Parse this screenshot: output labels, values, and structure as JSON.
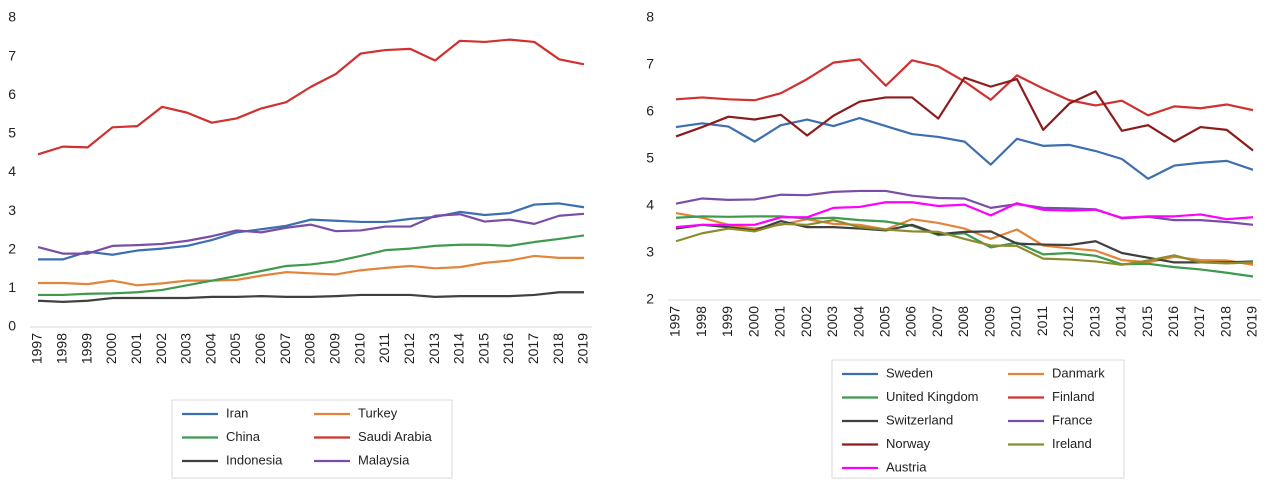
{
  "chart_data": [
    {
      "type": "line",
      "categories": [
        "1997",
        "1998",
        "1999",
        "2000",
        "2001",
        "2002",
        "2003",
        "2004",
        "2005",
        "2006",
        "2007",
        "2008",
        "2009",
        "2010",
        "2011",
        "2012",
        "2013",
        "2014",
        "2015",
        "2016",
        "2017",
        "2018",
        "2019"
      ],
      "ylim": [
        0,
        8
      ],
      "yticks": [
        0,
        1,
        2,
        3,
        4,
        5,
        6,
        7,
        8
      ],
      "grid": false,
      "series": [
        {
          "name": "Iran",
          "color": "#3d6fb0",
          "values": [
            1.75,
            1.75,
            1.95,
            1.87,
            1.98,
            2.03,
            2.1,
            2.25,
            2.45,
            2.53,
            2.62,
            2.78,
            2.75,
            2.72,
            2.72,
            2.8,
            2.85,
            2.98,
            2.9,
            2.95,
            3.17,
            3.2,
            3.1
          ]
        },
        {
          "name": "Turkey",
          "color": "#e3843a",
          "values": [
            1.14,
            1.14,
            1.11,
            1.2,
            1.08,
            1.13,
            1.2,
            1.2,
            1.22,
            1.33,
            1.42,
            1.39,
            1.36,
            1.47,
            1.53,
            1.58,
            1.52,
            1.55,
            1.66,
            1.72,
            1.84,
            1.79,
            1.79
          ]
        },
        {
          "name": "China",
          "color": "#3f9a4d",
          "values": [
            0.83,
            0.83,
            0.86,
            0.87,
            0.9,
            0.96,
            1.08,
            1.2,
            1.32,
            1.45,
            1.58,
            1.62,
            1.7,
            1.84,
            1.99,
            2.03,
            2.1,
            2.13,
            2.13,
            2.1,
            2.2,
            2.28,
            2.37
          ]
        },
        {
          "name": "Saudi Arabia",
          "color": "#d0302f",
          "values": [
            4.47,
            4.67,
            4.65,
            5.17,
            5.2,
            5.7,
            5.55,
            5.29,
            5.4,
            5.66,
            5.82,
            6.22,
            6.55,
            7.08,
            7.17,
            7.2,
            6.9,
            7.41,
            7.38,
            7.44,
            7.38,
            6.93,
            6.8
          ]
        },
        {
          "name": "Indonesia",
          "color": "#404040",
          "values": [
            0.68,
            0.65,
            0.68,
            0.75,
            0.75,
            0.75,
            0.75,
            0.78,
            0.78,
            0.8,
            0.78,
            0.78,
            0.8,
            0.83,
            0.83,
            0.83,
            0.78,
            0.8,
            0.8,
            0.8,
            0.83,
            0.9,
            0.9
          ]
        },
        {
          "name": "Malaysia",
          "color": "#7a4ea6",
          "values": [
            2.07,
            1.9,
            1.9,
            2.1,
            2.12,
            2.15,
            2.23,
            2.35,
            2.5,
            2.45,
            2.57,
            2.65,
            2.48,
            2.5,
            2.6,
            2.6,
            2.88,
            2.92,
            2.73,
            2.78,
            2.67,
            2.88,
            2.93
          ]
        }
      ]
    },
    {
      "type": "line",
      "categories": [
        "1997",
        "1998",
        "1999",
        "2000",
        "2001",
        "2002",
        "2003",
        "2004",
        "2005",
        "2006",
        "2007",
        "2008",
        "2009",
        "2010",
        "2011",
        "2012",
        "2013",
        "2014",
        "2015",
        "2016",
        "2017",
        "2018",
        "2019"
      ],
      "ylim": [
        2,
        8
      ],
      "yticks": [
        2,
        3,
        4,
        5,
        6,
        7,
        8
      ],
      "grid": false,
      "series": [
        {
          "name": "Sweden",
          "color": "#3d6fb0",
          "values": [
            5.68,
            5.76,
            5.69,
            5.37,
            5.72,
            5.84,
            5.7,
            5.87,
            5.7,
            5.53,
            5.47,
            5.37,
            4.88,
            5.43,
            5.28,
            5.3,
            5.17,
            5.0,
            4.58,
            4.86,
            4.92,
            4.96,
            4.77
          ]
        },
        {
          "name": "Danmark",
          "color": "#e3843a",
          "values": [
            3.85,
            3.75,
            3.6,
            3.52,
            3.6,
            3.72,
            3.62,
            3.6,
            3.5,
            3.72,
            3.64,
            3.52,
            3.3,
            3.5,
            3.16,
            3.1,
            3.05,
            2.85,
            2.8,
            2.92,
            2.85,
            2.84,
            2.75
          ]
        },
        {
          "name": "United Kingdom",
          "color": "#3f9a4d",
          "values": [
            3.75,
            3.78,
            3.77,
            3.78,
            3.78,
            3.73,
            3.75,
            3.7,
            3.67,
            3.58,
            3.38,
            3.42,
            3.12,
            3.22,
            2.97,
            3.0,
            2.94,
            2.76,
            2.77,
            2.7,
            2.65,
            2.58,
            2.5
          ]
        },
        {
          "name": "Finland",
          "color": "#d0302f",
          "values": [
            6.27,
            6.31,
            6.27,
            6.25,
            6.4,
            6.7,
            7.05,
            7.12,
            6.56,
            7.1,
            6.97,
            6.65,
            6.26,
            6.78,
            6.5,
            6.25,
            6.14,
            6.24,
            5.93,
            6.12,
            6.08,
            6.16,
            6.04
          ]
        },
        {
          "name": "Switzerland",
          "color": "#404040",
          "values": [
            3.52,
            3.6,
            3.55,
            3.48,
            3.68,
            3.55,
            3.55,
            3.52,
            3.48,
            3.6,
            3.4,
            3.45,
            3.46,
            3.2,
            3.18,
            3.17,
            3.25,
            3.0,
            2.9,
            2.8,
            2.8,
            2.8,
            2.82
          ]
        },
        {
          "name": "France",
          "color": "#7a4ea6",
          "values": [
            4.05,
            4.16,
            4.13,
            4.14,
            4.24,
            4.23,
            4.3,
            4.32,
            4.32,
            4.22,
            4.17,
            4.16,
            3.96,
            4.04,
            3.96,
            3.95,
            3.93,
            3.74,
            3.77,
            3.7,
            3.7,
            3.66,
            3.6
          ]
        },
        {
          "name": "Norway",
          "color": "#8c1c1c",
          "values": [
            5.48,
            5.68,
            5.9,
            5.84,
            5.94,
            5.5,
            5.92,
            6.22,
            6.31,
            6.31,
            5.86,
            6.73,
            6.54,
            6.7,
            5.62,
            6.18,
            6.44,
            5.6,
            5.72,
            5.37,
            5.68,
            5.62,
            5.18
          ]
        },
        {
          "name": "Ireland",
          "color": "#8d8c2c",
          "values": [
            3.25,
            3.42,
            3.52,
            3.46,
            3.62,
            3.6,
            3.7,
            3.55,
            3.5,
            3.46,
            3.45,
            3.3,
            3.16,
            3.15,
            2.88,
            2.86,
            2.82,
            2.75,
            2.84,
            2.95,
            2.8,
            2.78,
            2.8
          ]
        },
        {
          "name": "Austria",
          "color": "#ff00ff",
          "values": [
            3.55,
            3.6,
            3.6,
            3.6,
            3.76,
            3.76,
            3.96,
            3.98,
            4.08,
            4.08,
            4.0,
            4.03,
            3.8,
            4.06,
            3.92,
            3.9,
            3.92,
            3.75,
            3.78,
            3.78,
            3.82,
            3.72,
            3.76
          ]
        }
      ]
    }
  ]
}
